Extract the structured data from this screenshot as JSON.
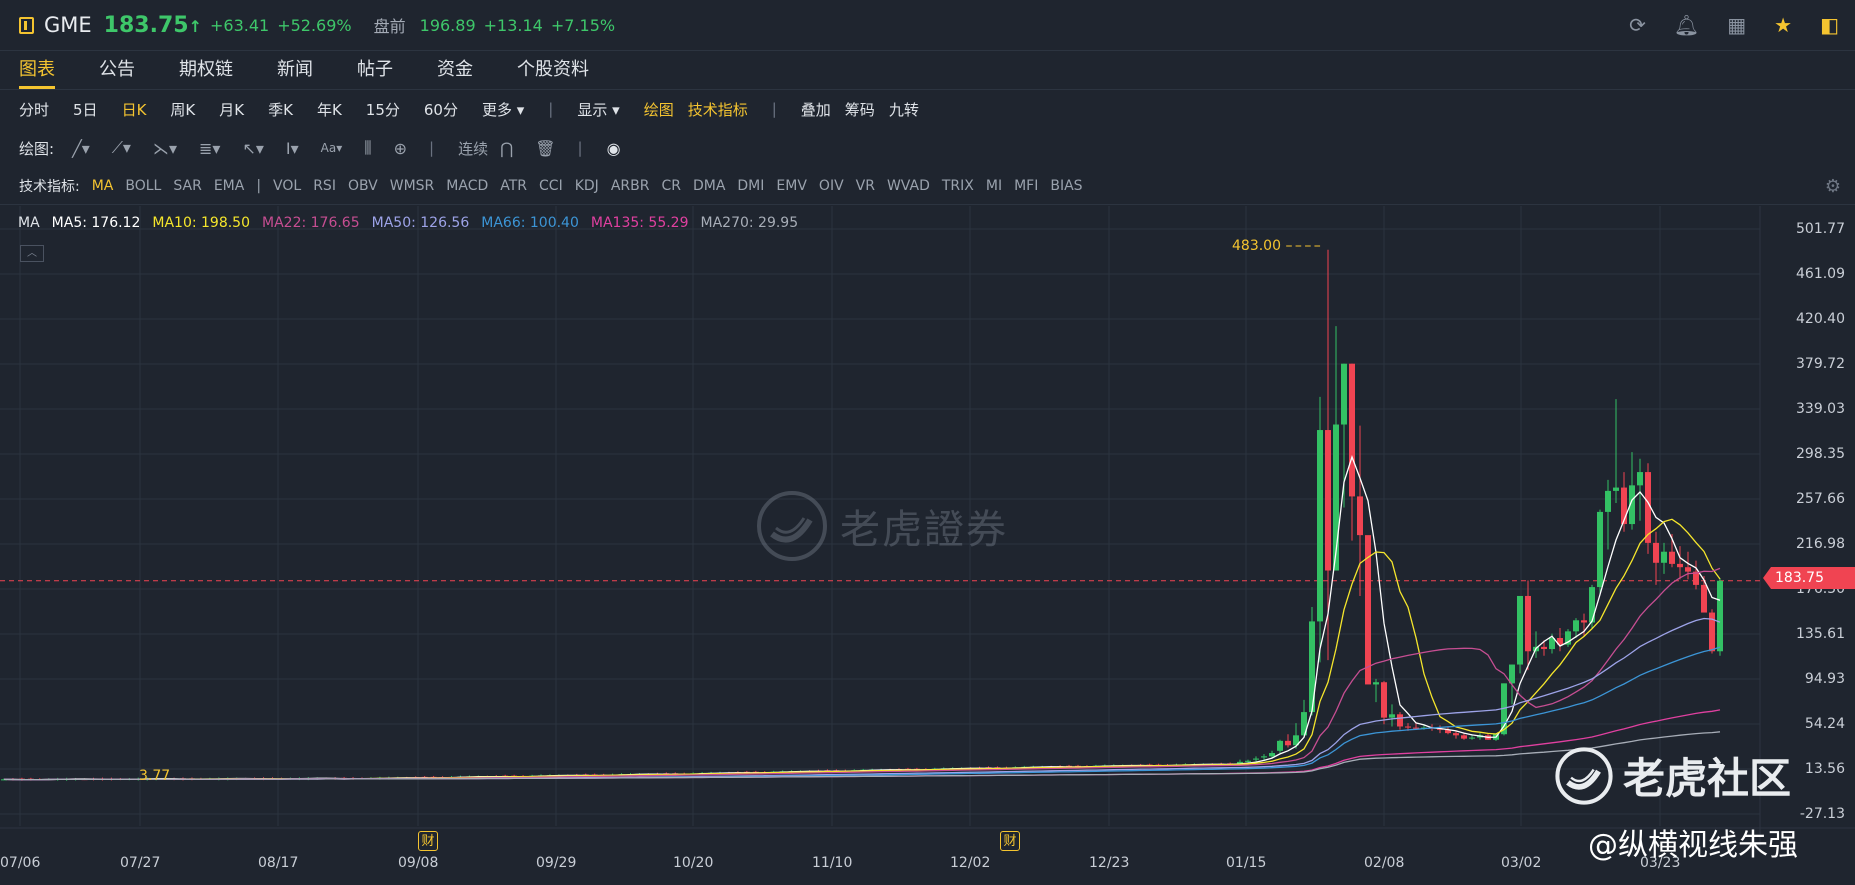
{
  "header": {
    "ticker": "GME",
    "price": "183.75",
    "arrow": "↑",
    "change": "+63.41",
    "change_pct": "+52.69%",
    "premarket_label": "盘前",
    "premarket_price": "196.89",
    "premarket_change": "+13.14",
    "premarket_change_pct": "+7.15%"
  },
  "tabs": [
    "图表",
    "公告",
    "期权链",
    "新闻",
    "帖子",
    "资金",
    "个股资料"
  ],
  "periods": [
    "分时",
    "5日",
    "日K",
    "周K",
    "月K",
    "季K",
    "年K",
    "15分",
    "60分",
    "更多"
  ],
  "period_active": "日K",
  "toolbar": {
    "display": "显示",
    "draw": "绘图",
    "indicators": "技术指标",
    "overlay": "叠加",
    "chips": "筹码",
    "nine": "九转"
  },
  "drawbar": {
    "label": "绘图:",
    "continuous": "连续"
  },
  "indicators": {
    "label": "技术指标:",
    "items": [
      "MA",
      "BOLL",
      "SAR",
      "EMA",
      "|",
      "VOL",
      "RSI",
      "OBV",
      "WMSR",
      "MACD",
      "ATR",
      "CCI",
      "KDJ",
      "ARBR",
      "CR",
      "DMA",
      "DMI",
      "EMV",
      "OIV",
      "VR",
      "WVAD",
      "TRIX",
      "MI",
      "MFI",
      "BIAS"
    ]
  },
  "ma_legend": {
    "label": "MA",
    "items": [
      {
        "name": "MA5",
        "value": "176.12",
        "color": "#ffffff"
      },
      {
        "name": "MA10",
        "value": "198.50",
        "color": "#f5e62c"
      },
      {
        "name": "MA22",
        "value": "176.65",
        "color": "#c64e92"
      },
      {
        "name": "MA50",
        "value": "126.56",
        "color": "#9da3e8"
      },
      {
        "name": "MA66",
        "value": "100.40",
        "color": "#3c95d6"
      },
      {
        "name": "MA135",
        "value": "55.29",
        "color": "#e040a0"
      },
      {
        "name": "MA270",
        "value": "29.95",
        "color": "#a7adb7"
      }
    ]
  },
  "chart_data": {
    "type": "candlestick",
    "y_ticks": [
      "501.77",
      "461.09",
      "420.40",
      "379.72",
      "339.03",
      "298.35",
      "257.66",
      "216.98",
      "176.30",
      "135.61",
      "94.93",
      "54.24",
      "13.56",
      "-27.13"
    ],
    "x_ticks": [
      "07/06",
      "07/27",
      "08/17",
      "09/08",
      "09/29",
      "10/20",
      "11/10",
      "12/02",
      "12/23",
      "01/15",
      "02/08",
      "03/02",
      "03/23"
    ],
    "ylim": [
      -40,
      515
    ],
    "last_price": "183.75",
    "max_label": "483.00",
    "min_label": "3.77",
    "earnings_marker": "财",
    "up_color": "#33c164",
    "down_color": "#f04452"
  },
  "watermark": "老虎證券",
  "brand": "老虎社区",
  "author": "@纵横视线朱强"
}
